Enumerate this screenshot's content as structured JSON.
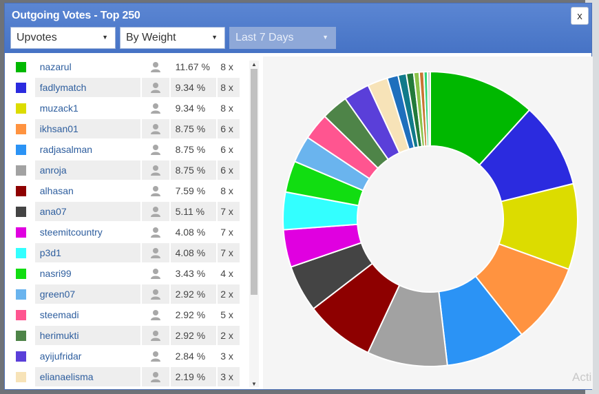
{
  "dialog": {
    "title": "Outgoing Votes - Top 250",
    "close_label": "x",
    "filters": {
      "vote_type": "Upvotes",
      "sort": "By Weight",
      "period": "Last 7 Days"
    }
  },
  "votes": [
    {
      "name": "nazarul",
      "pct": "11.67 %",
      "count": "8 x",
      "color": "#00b800"
    },
    {
      "name": "fadlymatch",
      "pct": "9.34 %",
      "count": "8 x",
      "color": "#2b2bdf"
    },
    {
      "name": "muzack1",
      "pct": "9.34 %",
      "count": "8 x",
      "color": "#dcdc00"
    },
    {
      "name": "ikhsan01",
      "pct": "8.75 %",
      "count": "6 x",
      "color": "#ff9340"
    },
    {
      "name": "radjasalman",
      "pct": "8.75 %",
      "count": "6 x",
      "color": "#2b93f5"
    },
    {
      "name": "anroja",
      "pct": "8.75 %",
      "count": "6 x",
      "color": "#a2a2a2"
    },
    {
      "name": "alhasan",
      "pct": "7.59 %",
      "count": "8 x",
      "color": "#8e0000"
    },
    {
      "name": "ana07",
      "pct": "5.11 %",
      "count": "7 x",
      "color": "#444444"
    },
    {
      "name": "steemitcountry",
      "pct": "4.08 %",
      "count": "7 x",
      "color": "#e000e0"
    },
    {
      "name": "p3d1",
      "pct": "4.08 %",
      "count": "7 x",
      "color": "#33ffff"
    },
    {
      "name": "nasri99",
      "pct": "3.43 %",
      "count": "4 x",
      "color": "#11dd11"
    },
    {
      "name": "green07",
      "pct": "2.92 %",
      "count": "2 x",
      "color": "#6ab4ee"
    },
    {
      "name": "steemadi",
      "pct": "2.92 %",
      "count": "5 x",
      "color": "#ff5590"
    },
    {
      "name": "herimukti",
      "pct": "2.92 %",
      "count": "2 x",
      "color": "#4e8448"
    },
    {
      "name": "ayijufridar",
      "pct": "2.84 %",
      "count": "3 x",
      "color": "#5a3fd9"
    },
    {
      "name": "elianaelisma",
      "pct": "2.19 %",
      "count": "3 x",
      "color": "#f7e3b8"
    }
  ],
  "chart_data": {
    "type": "pie",
    "style": "donut",
    "values": [
      11.67,
      9.34,
      9.34,
      8.75,
      8.75,
      8.75,
      7.59,
      5.11,
      4.08,
      4.08,
      3.43,
      2.92,
      2.92,
      2.92,
      2.84,
      2.19,
      1.2,
      0.9,
      0.8,
      0.6,
      0.5,
      0.4,
      0.3
    ],
    "colors": [
      "#00b800",
      "#2b2bdf",
      "#dcdc00",
      "#ff9340",
      "#2b93f5",
      "#a2a2a2",
      "#8e0000",
      "#444444",
      "#e000e0",
      "#33ffff",
      "#11dd11",
      "#6ab4ee",
      "#ff5590",
      "#4e8448",
      "#5a3fd9",
      "#f7e3b8",
      "#1e6fbd",
      "#107a8a",
      "#237a3a",
      "#8bc34a",
      "#c87533",
      "#33d67a",
      "#cccccc"
    ]
  },
  "watermark": "Acti"
}
